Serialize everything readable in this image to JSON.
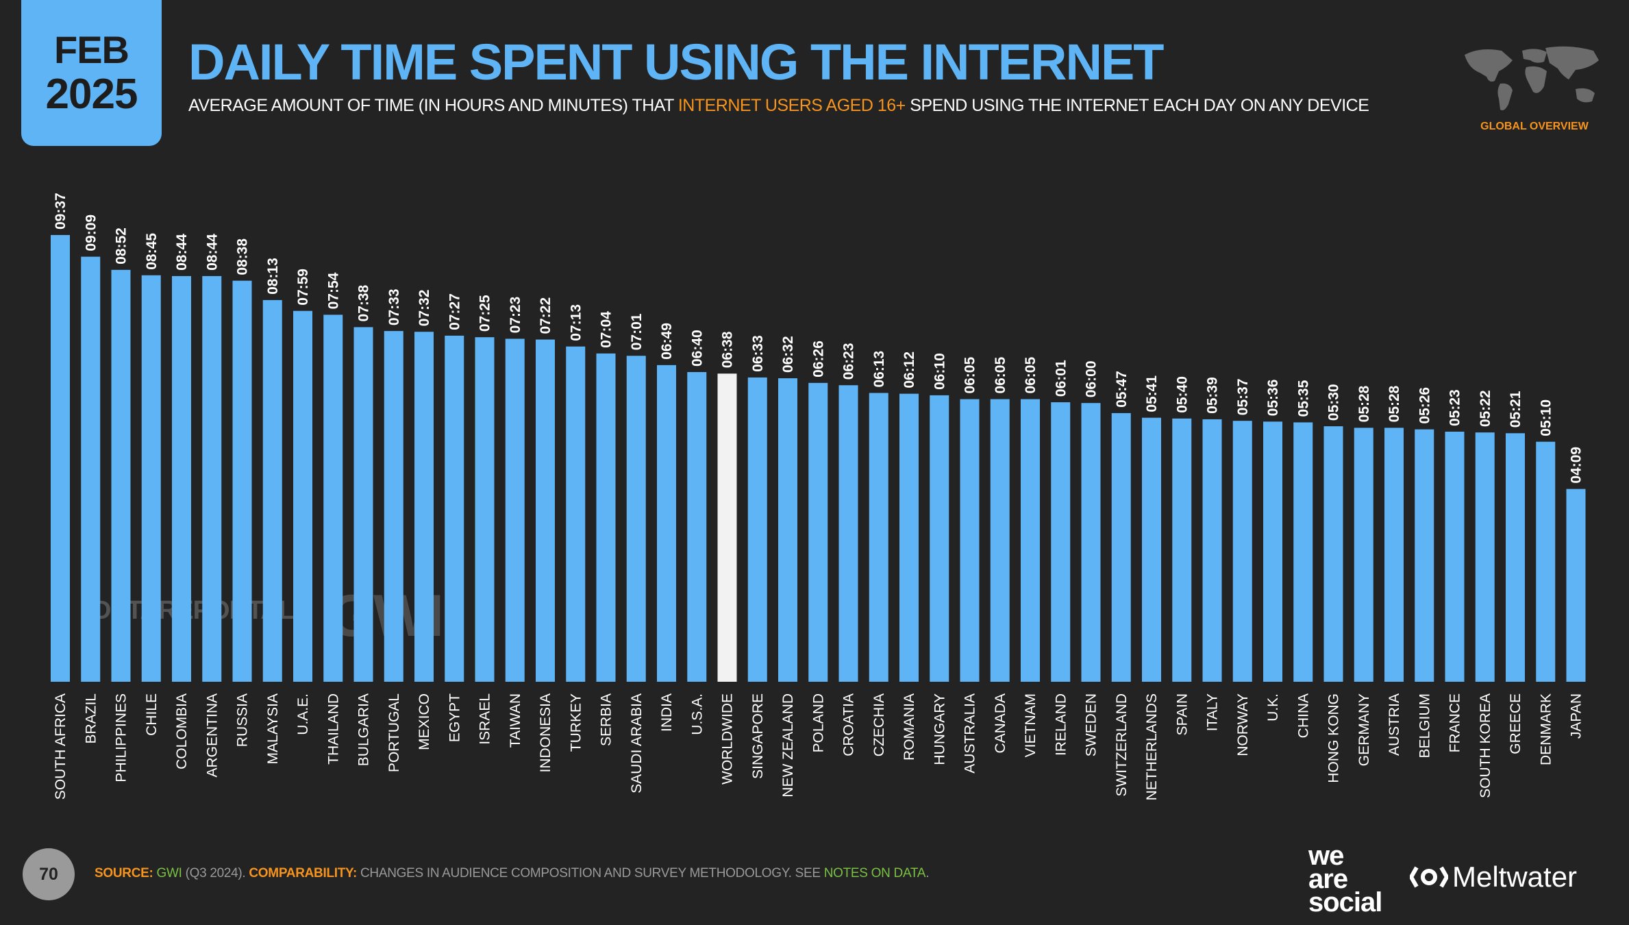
{
  "badge": {
    "month": "FEB",
    "year": "2025"
  },
  "header": {
    "title": "DAILY TIME SPENT USING THE INTERNET",
    "subtitle_pre": "AVERAGE AMOUNT OF TIME (IN HOURS AND MINUTES) THAT ",
    "subtitle_highlight": "INTERNET USERS AGED 16+",
    "subtitle_post": " SPEND USING THE INTERNET EACH DAY ON ANY DEVICE"
  },
  "map": {
    "label": "GLOBAL OVERVIEW",
    "icon": "world-map-icon"
  },
  "watermarks": {
    "datareportal": "DATAREPORTAL",
    "gwi": "GWI."
  },
  "footer": {
    "page_number": "70",
    "source_label": "SOURCE:",
    "source_name": "GWI",
    "source_detail": " (Q3 2024). ",
    "comparability_label": "COMPARABILITY:",
    "comparability_text": " CHANGES IN AUDIENCE COMPOSITION AND SURVEY METHODOLOGY. SEE ",
    "notes_link": "NOTES ON DATA",
    "notes_end": "."
  },
  "brands": {
    "was_1": "we",
    "was_2": "are",
    "was_3": "social",
    "meltwater": "Meltwater"
  },
  "colors": {
    "bar": "#5fb4f6",
    "highlight_bar": "#f2f2f2",
    "accent": "#f7941d",
    "background": "#232323"
  },
  "chart_data": {
    "type": "bar",
    "title": "DAILY TIME SPENT USING THE INTERNET",
    "unit": "hours and minutes",
    "highlight": "WORLDWIDE",
    "categories": [
      "SOUTH AFRICA",
      "BRAZIL",
      "PHILIPPINES",
      "CHILE",
      "COLOMBIA",
      "ARGENTINA",
      "RUSSIA",
      "MALAYSIA",
      "U.A.E.",
      "THAILAND",
      "BULGARIA",
      "PORTUGAL",
      "MEXICO",
      "EGYPT",
      "ISRAEL",
      "TAIWAN",
      "INDONESIA",
      "TURKEY",
      "SERBIA",
      "SAUDI ARABIA",
      "INDIA",
      "U.S.A.",
      "WORLDWIDE",
      "SINGAPORE",
      "NEW ZEALAND",
      "POLAND",
      "CROATIA",
      "CZECHIA",
      "ROMANIA",
      "HUNGARY",
      "AUSTRALIA",
      "CANADA",
      "VIETNAM",
      "IRELAND",
      "SWEDEN",
      "SWITZERLAND",
      "NETHERLANDS",
      "SPAIN",
      "ITALY",
      "NORWAY",
      "U.K.",
      "CHINA",
      "HONG KONG",
      "GERMANY",
      "AUSTRIA",
      "BELGIUM",
      "FRANCE",
      "SOUTH KOREA",
      "GREECE",
      "DENMARK",
      "JAPAN"
    ],
    "labels": [
      "09:37",
      "09:09",
      "08:52",
      "08:45",
      "08:44",
      "08:44",
      "08:38",
      "08:13",
      "07:59",
      "07:54",
      "07:38",
      "07:33",
      "07:32",
      "07:27",
      "07:25",
      "07:23",
      "07:22",
      "07:13",
      "07:04",
      "07:01",
      "06:49",
      "06:40",
      "06:38",
      "06:33",
      "06:32",
      "06:26",
      "06:23",
      "06:13",
      "06:12",
      "06:10",
      "06:05",
      "06:05",
      "06:05",
      "06:01",
      "06:00",
      "05:47",
      "05:41",
      "05:40",
      "05:39",
      "05:37",
      "05:36",
      "05:35",
      "05:30",
      "05:28",
      "05:28",
      "05:26",
      "05:23",
      "05:22",
      "05:21",
      "05:10",
      "04:09"
    ],
    "values_minutes": [
      577,
      549,
      532,
      525,
      524,
      524,
      518,
      493,
      479,
      474,
      458,
      453,
      452,
      447,
      445,
      443,
      442,
      433,
      424,
      421,
      409,
      400,
      398,
      393,
      392,
      386,
      383,
      373,
      372,
      370,
      365,
      365,
      365,
      361,
      360,
      347,
      341,
      340,
      339,
      337,
      336,
      335,
      330,
      328,
      328,
      326,
      323,
      322,
      321,
      310,
      249
    ],
    "ylim_minutes": [
      0,
      577
    ]
  }
}
